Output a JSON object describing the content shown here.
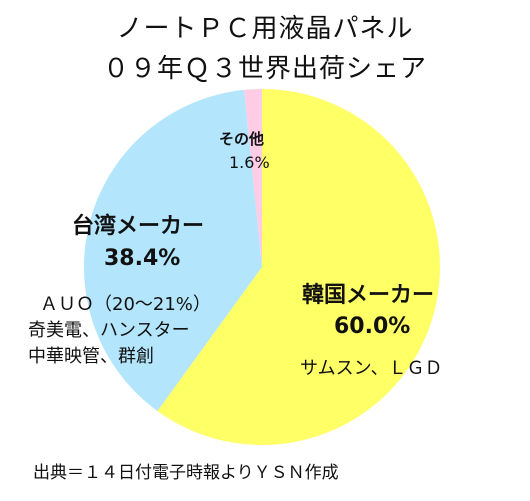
{
  "title_line1": "ノートＰＣ用液晶パネル",
  "title_line2": "０９年Ｑ３世界出荷シェア",
  "chart_data": {
    "type": "pie",
    "title": "ノートＰＣ用液晶パネル ０９年Ｑ３世界出荷シェア",
    "slices": [
      {
        "label": "韓国メーカー",
        "value": 60.0,
        "value_label": "60.0%",
        "detail": "サムスン、ＬＧＤ",
        "color": "#ffff66"
      },
      {
        "label": "台湾メーカー",
        "value": 38.4,
        "value_label": "38.4%",
        "detail_lines": [
          "ＡＵＯ（20〜21%）",
          "奇美電、ハンスター",
          "中華映管、群創"
        ],
        "color": "#b3e5fc"
      },
      {
        "label": "その他",
        "value": 1.6,
        "value_label": "1.6%",
        "color": "#ffcce6"
      }
    ]
  },
  "source_note": "出典＝１４日付電子時報よりＹＳＮ作成"
}
